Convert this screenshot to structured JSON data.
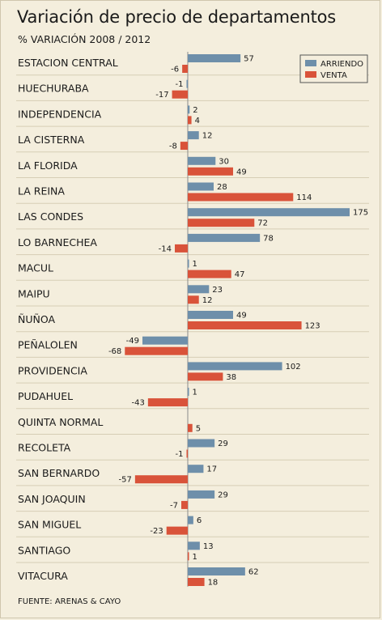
{
  "title": "Variación de precio de departamentos",
  "subtitle": "% VARIACIÓN 2008 / 2012",
  "source": "FUENTE: ARENAS & CAYO",
  "chart_data": {
    "type": "bar",
    "orientation": "horizontal",
    "title": "Variación de precio de departamentos",
    "subtitle": "% VARIACIÓN 2008 / 2012",
    "categories": [
      "ESTACION CENTRAL",
      "HUECHURABA",
      "INDEPENDENCIA",
      "LA CISTERNA",
      "LA FLORIDA",
      "LA REINA",
      "LAS CONDES",
      "LO BARNECHEA",
      "MACUL",
      "MAIPU",
      "ÑUÑOA",
      "PEÑALOLEN",
      "PROVIDENCIA",
      "PUDAHUEL",
      "QUINTA NORMAL",
      "RECOLETA",
      "SAN BERNARDO",
      "SAN JOAQUIN",
      "SAN MIGUEL",
      "SANTIAGO",
      "VITACURA"
    ],
    "series": [
      {
        "name": "ARRIENDO",
        "color": "#6e8faa",
        "values": [
          57,
          -1,
          2,
          12,
          30,
          28,
          175,
          78,
          1,
          23,
          49,
          -49,
          102,
          1,
          null,
          29,
          17,
          29,
          6,
          13,
          62
        ]
      },
      {
        "name": "VENTA",
        "color": "#d9533a",
        "values": [
          -6,
          -17,
          4,
          -8,
          49,
          114,
          72,
          -14,
          47,
          12,
          123,
          -68,
          38,
          -43,
          5,
          -1,
          -57,
          -7,
          -23,
          1,
          18
        ]
      }
    ],
    "legend": "top-right",
    "grid": false
  }
}
